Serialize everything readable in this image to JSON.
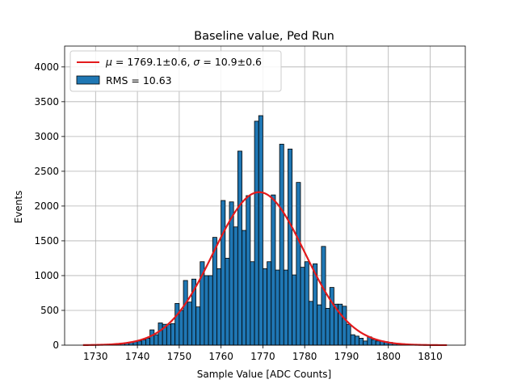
{
  "chart_data": {
    "type": "bar",
    "title": "Baseline value, Ped Run",
    "xlabel": "Sample Value [ADC Counts]",
    "ylabel": "Events",
    "xlim": [
      1722.6,
      1818.4
    ],
    "ylim": [
      0,
      4300
    ],
    "xticks": [
      1730,
      1740,
      1750,
      1760,
      1770,
      1780,
      1790,
      1800,
      1810
    ],
    "yticks": [
      0,
      500,
      1000,
      1500,
      2000,
      2500,
      3000,
      3500,
      4000
    ],
    "grid": true,
    "legend_position": "upper-left",
    "histogram": {
      "name": "RMS = 10.63",
      "color": "#1f77b4",
      "edgecolor": "#000000",
      "bin_width": 1.0,
      "bins": [
        [
          1729,
          5
        ],
        [
          1730,
          5
        ],
        [
          1731,
          10
        ],
        [
          1732,
          10
        ],
        [
          1733,
          10
        ],
        [
          1734,
          15
        ],
        [
          1735,
          20
        ],
        [
          1736,
          25
        ],
        [
          1737,
          30
        ],
        [
          1738,
          40
        ],
        [
          1739,
          50
        ],
        [
          1740,
          60
        ],
        [
          1741,
          75
        ],
        [
          1742,
          100
        ],
        [
          1743,
          220
        ],
        [
          1744,
          150
        ],
        [
          1745,
          320
        ],
        [
          1746,
          300
        ],
        [
          1747,
          300
        ],
        [
          1748,
          310
        ],
        [
          1749,
          600
        ],
        [
          1750,
          500
        ],
        [
          1751,
          930
        ],
        [
          1752,
          620
        ],
        [
          1753,
          950
        ],
        [
          1754,
          550
        ],
        [
          1755,
          1200
        ],
        [
          1756,
          1000
        ],
        [
          1757,
          1000
        ],
        [
          1758,
          1550
        ],
        [
          1759,
          1100
        ],
        [
          1760,
          2080
        ],
        [
          1761,
          1250
        ],
        [
          1762,
          2060
        ],
        [
          1763,
          1700
        ],
        [
          1764,
          2790
        ],
        [
          1765,
          1650
        ],
        [
          1766,
          2150
        ],
        [
          1767,
          1200
        ],
        [
          1768,
          3220
        ],
        [
          1769,
          3300
        ],
        [
          1770,
          1100
        ],
        [
          1771,
          1200
        ],
        [
          1772,
          2160
        ],
        [
          1773,
          1080
        ],
        [
          1774,
          2890
        ],
        [
          1775,
          1080
        ],
        [
          1776,
          2820
        ],
        [
          1777,
          1010
        ],
        [
          1778,
          2340
        ],
        [
          1779,
          1120
        ],
        [
          1780,
          1200
        ],
        [
          1781,
          630
        ],
        [
          1782,
          1170
        ],
        [
          1783,
          580
        ],
        [
          1784,
          1420
        ],
        [
          1785,
          530
        ],
        [
          1786,
          830
        ],
        [
          1787,
          590
        ],
        [
          1788,
          590
        ],
        [
          1789,
          560
        ],
        [
          1790,
          300
        ],
        [
          1791,
          150
        ],
        [
          1792,
          130
        ],
        [
          1793,
          100
        ],
        [
          1794,
          60
        ],
        [
          1795,
          120
        ],
        [
          1796,
          80
        ],
        [
          1797,
          60
        ],
        [
          1798,
          60
        ],
        [
          1799,
          50
        ],
        [
          1800,
          40
        ],
        [
          1801,
          30
        ],
        [
          1802,
          25
        ],
        [
          1803,
          20
        ],
        [
          1804,
          15
        ],
        [
          1805,
          10
        ],
        [
          1806,
          10
        ],
        [
          1807,
          5
        ],
        [
          1808,
          5
        ]
      ]
    },
    "fit": {
      "name": "$\\mu=1769.1{\\pm}0.6$, $\\sigma=10.9{\\pm}0.6$",
      "color": "#e31a1c",
      "type": "gaussian",
      "mu": 1769.1,
      "sigma": 10.9,
      "amplitude": 2200,
      "x_range": [
        1727,
        1814
      ]
    }
  }
}
